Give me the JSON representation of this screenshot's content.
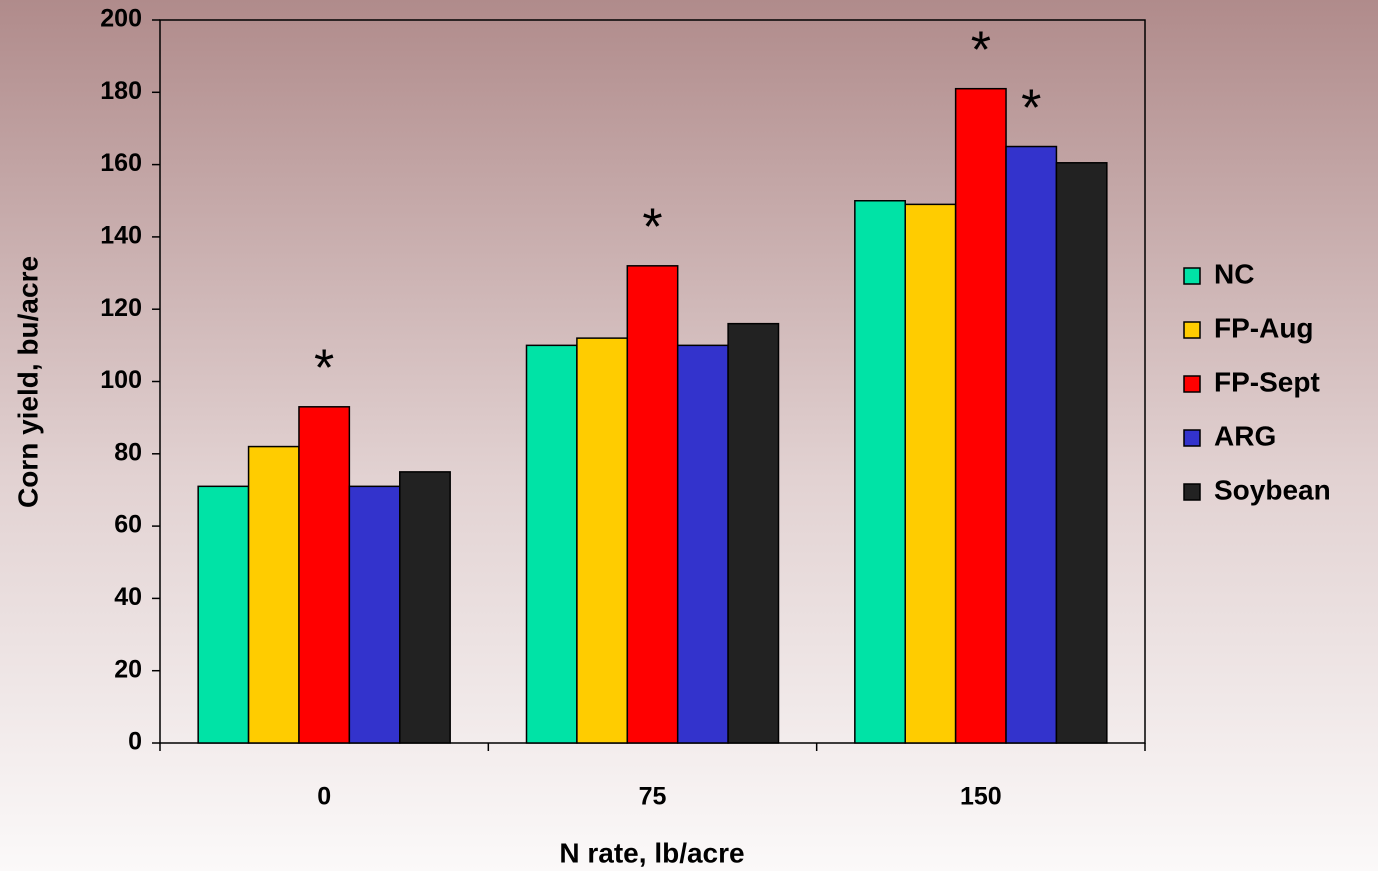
{
  "chart_data": {
    "type": "bar",
    "xlabel": "N rate, lb/acre",
    "ylabel": "Corn yield, bu/acre",
    "categories": [
      "0",
      "75",
      "150"
    ],
    "series": [
      {
        "name": "NC",
        "color": "#00e3a6",
        "values": [
          71,
          110,
          150
        ]
      },
      {
        "name": "FP-Aug",
        "color": "#ffcc00",
        "values": [
          82,
          112,
          149
        ]
      },
      {
        "name": "FP-Sept",
        "color": "#ff0000",
        "values": [
          93,
          132,
          181
        ]
      },
      {
        "name": "ARG",
        "color": "#3333cc",
        "values": [
          71,
          110,
          165
        ]
      },
      {
        "name": "Soybean",
        "color": "#222222",
        "values": [
          75,
          116,
          160.5
        ]
      }
    ],
    "annotations": [
      {
        "text": "*",
        "category": "0",
        "series": "FP-Sept"
      },
      {
        "text": "*",
        "category": "75",
        "series": "FP-Sept"
      },
      {
        "text": "*",
        "category": "150",
        "series": "FP-Sept"
      },
      {
        "text": "*",
        "category": "150",
        "series": "ARG"
      }
    ],
    "ylim": [
      0,
      200
    ],
    "yticks": [
      0,
      20,
      40,
      60,
      80,
      100,
      120,
      140,
      160,
      180,
      200
    ],
    "legend": "right"
  }
}
